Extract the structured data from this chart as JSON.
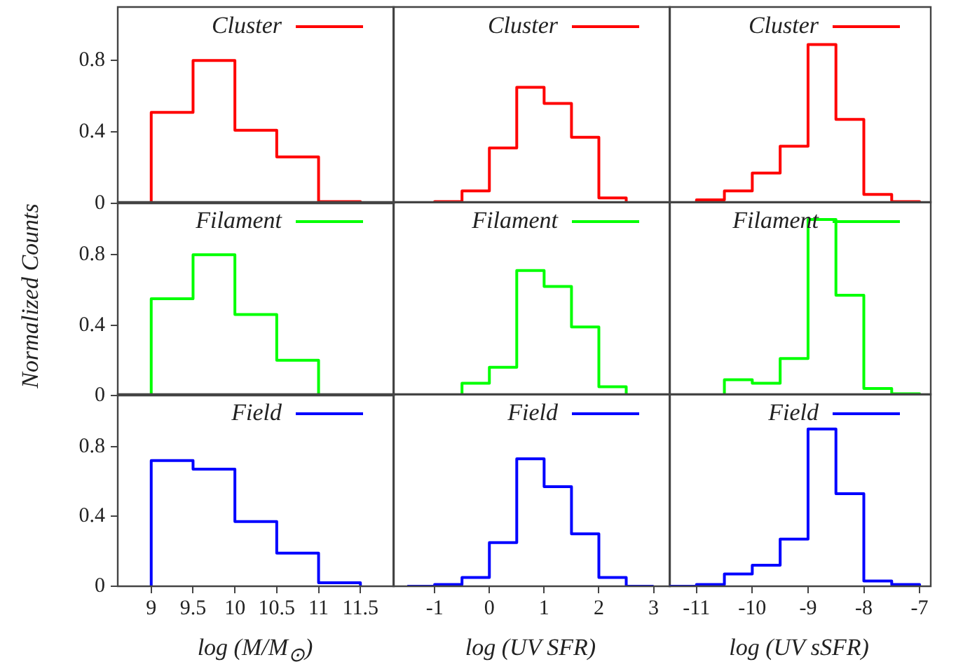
{
  "chart_data": [
    {
      "type": "histogram",
      "bins": [
        9,
        9.5,
        10,
        10.5,
        11,
        11.5
      ],
      "series": [
        {
          "name": "Cluster",
          "color": "#ff0000",
          "values": [
            0.51,
            0.8,
            0.41,
            0.26,
            0.01
          ]
        }
      ],
      "xlim": [
        8.6,
        11.9
      ],
      "ylim": [
        0,
        1.1
      ],
      "xticks": [
        9,
        9.5,
        10,
        10.5,
        11,
        11.5
      ],
      "yticks": [
        0,
        0.4,
        0.8
      ],
      "tick_labels": "y",
      "legend": "top right",
      "marker": "none"
    },
    {
      "type": "histogram",
      "bins": [
        -1,
        -0.5,
        0,
        0.5,
        1,
        1.5,
        2,
        2.5
      ],
      "series": [
        {
          "name": "Cluster",
          "color": "#ff0000",
          "values": [
            0.01,
            0.07,
            0.31,
            0.65,
            0.56,
            0.37,
            0.03
          ]
        }
      ],
      "xlim": [
        -1.77,
        3.3
      ],
      "ylim": [
        0,
        1.1
      ],
      "xticks": [
        -1,
        0,
        1,
        2,
        3
      ],
      "yticks": [
        0,
        0.4,
        0.8
      ],
      "tick_labels": false,
      "legend": "top right",
      "marker": "none"
    },
    {
      "type": "histogram",
      "bins": [
        -11,
        -10.5,
        -10,
        -9.5,
        -9,
        -8.5,
        -8,
        -7.5,
        -7
      ],
      "series": [
        {
          "name": "Cluster",
          "color": "#ff0000",
          "values": [
            0.02,
            0.07,
            0.17,
            0.32,
            0.89,
            0.47,
            0.05,
            0.01
          ]
        }
      ],
      "xlim": [
        -11.5,
        -6.8
      ],
      "ylim": [
        0,
        1.1
      ],
      "xticks": [
        -11,
        -10,
        -9,
        -8,
        -7
      ],
      "yticks": [
        0,
        0.4,
        0.8
      ],
      "tick_labels": false,
      "legend": "top right",
      "marker": "none"
    },
    {
      "type": "histogram",
      "bins": [
        9,
        9.5,
        10,
        10.5,
        11
      ],
      "series": [
        {
          "name": "Filament",
          "color": "#00ff00",
          "values": [
            0.55,
            0.8,
            0.46,
            0.2
          ]
        }
      ],
      "xlim": [
        8.6,
        11.9
      ],
      "xticks": [
        9,
        9.5,
        10,
        10.5,
        11,
        11.5
      ],
      "ylim": [
        0,
        1.1
      ],
      "yticks": [
        0,
        0.4,
        0.8
      ],
      "ylabel": "Normalized Counts",
      "tick_labels": "y",
      "legend": "top right",
      "marker": "none"
    },
    {
      "type": "histogram",
      "bins": [
        -0.5,
        0,
        0.5,
        1,
        1.5,
        2,
        2.5
      ],
      "series": [
        {
          "name": "Filament",
          "color": "#00ff00",
          "values": [
            0.07,
            0.16,
            0.71,
            0.62,
            0.39,
            0.05
          ]
        }
      ],
      "xlim": [
        -1.77,
        3.3
      ],
      "ylim": [
        0,
        1.1
      ],
      "xticks": [
        -1,
        0,
        1,
        2,
        3
      ],
      "yticks": [
        0,
        0.4,
        0.8
      ],
      "tick_labels": false,
      "legend": "top right",
      "marker": "none"
    },
    {
      "type": "histogram",
      "bins": [
        -10.5,
        -10,
        -9.5,
        -9,
        -8.5,
        -8,
        -7.5,
        -7
      ],
      "series": [
        {
          "name": "Filament",
          "color": "#00ff00",
          "values": [
            0.09,
            0.07,
            0.21,
            1.0,
            0.57,
            0.04,
            0.01
          ]
        }
      ],
      "xlim": [
        -11.5,
        -6.8
      ],
      "ylim": [
        0,
        1.1
      ],
      "xticks": [
        -11,
        -10,
        -9,
        -8,
        -7
      ],
      "yticks": [
        0,
        0.4,
        0.8
      ],
      "tick_labels": false,
      "legend": "top right",
      "marker": "none"
    },
    {
      "type": "histogram",
      "bins": [
        9,
        9.5,
        10,
        10.5,
        11,
        11.5
      ],
      "series": [
        {
          "name": "Field",
          "color": "#0000ff",
          "values": [
            0.72,
            0.67,
            0.37,
            0.19,
            0.02
          ]
        }
      ],
      "xlim": [
        8.6,
        11.9
      ],
      "ylim": [
        0,
        1.1
      ],
      "xticks": [
        9,
        9.5,
        10,
        10.5,
        11,
        11.5
      ],
      "yticks": [
        0,
        0.4,
        0.8
      ],
      "xlabel": "log (M/M$_{⊙}$)",
      "legend": "top right",
      "marker": "none"
    },
    {
      "type": "histogram",
      "bins": [
        -1.5,
        -1,
        -0.5,
        0,
        0.5,
        1,
        1.5,
        2,
        2.5,
        3
      ],
      "series": [
        {
          "name": "Field",
          "color": "#0000ff",
          "values": [
            0,
            0.01,
            0.05,
            0.25,
            0.73,
            0.57,
            0.3,
            0.05,
            0
          ]
        }
      ],
      "xlim": [
        -1.77,
        3.3
      ],
      "ylim": [
        0,
        1.1
      ],
      "yticks": [
        0,
        0.4,
        0.8
      ],
      "xticks": [
        -1,
        0,
        1,
        2,
        3
      ],
      "xlabel": "log (UV SFR)",
      "tick_labels": "x",
      "legend": "top right",
      "marker": "none"
    },
    {
      "type": "histogram",
      "bins": [
        -11.5,
        -11,
        -10.5,
        -10,
        -9.5,
        -9,
        -8.5,
        -8,
        -7.5,
        -7
      ],
      "series": [
        {
          "name": "Field",
          "color": "#0000ff",
          "values": [
            0,
            0.01,
            0.07,
            0.12,
            0.27,
            0.9,
            0.53,
            0.03,
            0.01
          ]
        }
      ],
      "xlim": [
        -11.5,
        -6.8
      ],
      "ylim": [
        0,
        1.1
      ],
      "yticks": [
        0,
        0.4,
        0.8
      ],
      "xticks": [
        -11,
        -10,
        -9,
        -8,
        -7
      ],
      "xlabel": "log (UV sSFR)",
      "tick_labels": "x",
      "legend": "top right",
      "marker": "none"
    }
  ]
}
